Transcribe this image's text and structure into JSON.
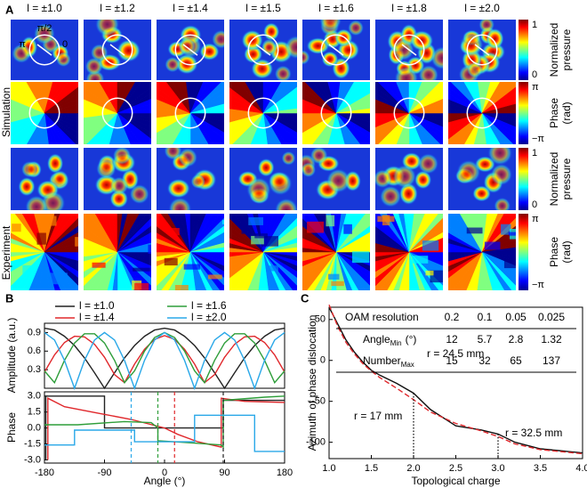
{
  "panel_labels": [
    "A",
    "B",
    "C"
  ],
  "panel_a": {
    "columns": [
      "l = ±1.0",
      "l = ±1.2",
      "l = ±1.4",
      "l = ±1.5",
      "l = ±1.6",
      "l = ±1.8",
      "l = ±2.0"
    ],
    "row_labels": [
      "Simulation",
      "Experiment"
    ],
    "cell_labels": [
      "π/2",
      "π",
      "0"
    ],
    "colorbars": [
      {
        "top": "1",
        "bottom": "0",
        "title": [
          "Normalized",
          "pressure"
        ]
      },
      {
        "top": "π",
        "bottom": "−π",
        "title": [
          "Phase",
          "(rad)"
        ]
      },
      {
        "top": "1",
        "bottom": "0",
        "title": [
          "Normalized",
          "pressure"
        ]
      },
      {
        "top": "π",
        "bottom": "−π",
        "title": [
          "Phase",
          "(rad)"
        ]
      }
    ]
  },
  "chart_data": [
    {
      "type": "line",
      "ylabel": "Amplitude (a.u.)",
      "x": [
        -180,
        -165,
        -150,
        -135,
        -120,
        -105,
        -90,
        -75,
        -60,
        -45,
        -30,
        -15,
        0,
        15,
        30,
        45,
        60,
        75,
        90,
        105,
        120,
        135,
        150,
        165,
        180
      ],
      "xlim": [
        -180,
        180
      ],
      "ylim": [
        0,
        1.05
      ],
      "yticks": [
        0.3,
        0.6,
        0.9
      ],
      "series": [
        {
          "name": "l = ±1.0",
          "color": "#222222",
          "values": [
            0.97,
            0.94,
            0.84,
            0.69,
            0.49,
            0.25,
            0,
            0.25,
            0.49,
            0.69,
            0.84,
            0.94,
            0.97,
            0.94,
            0.84,
            0.69,
            0.49,
            0.25,
            0,
            0.25,
            0.49,
            0.69,
            0.84,
            0.94,
            0.97
          ]
        },
        {
          "name": "l = ±1.4",
          "color": "#e0282c",
          "values": [
            0.26,
            0.54,
            0.74,
            0.84,
            0.83,
            0.71,
            0.5,
            0.22,
            0.09,
            0.39,
            0.63,
            0.79,
            0.85,
            0.79,
            0.63,
            0.39,
            0.09,
            0.22,
            0.5,
            0.71,
            0.83,
            0.84,
            0.74,
            0.54,
            0.26
          ]
        },
        {
          "name": "l = ±1.6",
          "color": "#2e9e3a",
          "values": [
            0.28,
            0.09,
            0.45,
            0.73,
            0.88,
            0.88,
            0.73,
            0.45,
            0.09,
            0.28,
            0.6,
            0.82,
            0.9,
            0.82,
            0.6,
            0.28,
            0.09,
            0.45,
            0.73,
            0.88,
            0.88,
            0.73,
            0.45,
            0.09,
            0.28
          ]
        },
        {
          "name": "l = ±2.0",
          "color": "#2aa8e8",
          "values": [
            0.9,
            0.78,
            0.45,
            0,
            0.45,
            0.78,
            0.9,
            0.78,
            0.45,
            0,
            0.45,
            0.78,
            0.9,
            0.78,
            0.45,
            0,
            0.45,
            0.78,
            0.9,
            0.78,
            0.45,
            0,
            0.45,
            0.78,
            0.9
          ]
        }
      ]
    },
    {
      "type": "line",
      "ylabel": "Phase",
      "xlabel": "Angle (°)",
      "xlim": [
        -180,
        180
      ],
      "xticks": [
        -180,
        -90,
        0,
        90,
        180
      ],
      "ylim": [
        -3.3,
        3.4
      ],
      "yticks": [
        {
          "value": -3,
          "label": "-3.0"
        },
        -1.5,
        {
          "value": 0,
          "label": "0.0"
        },
        1.5,
        {
          "value": 3,
          "label": "3.0"
        }
      ],
      "series": [
        {
          "color": "#222222",
          "x": [
            -178,
            -178,
            -90,
            -90,
            88,
            88,
            180
          ],
          "values": [
            -3.0,
            3.0,
            3.0,
            0,
            0,
            2.6,
            2.6
          ]
        },
        {
          "color": "#e0282c",
          "x": [
            -175,
            -175,
            -150,
            -100,
            -50,
            0,
            20,
            50,
            85,
            85,
            120,
            180
          ],
          "values": [
            -3.0,
            2.8,
            2.0,
            1.4,
            0.8,
            0,
            -0.6,
            -1.3,
            -1.8,
            2.8,
            2.5,
            2.4
          ]
        },
        {
          "color": "#2e9e3a",
          "x": [
            -180,
            -130,
            -60,
            -20,
            -10,
            -10,
            40,
            85,
            88,
            88,
            150,
            180
          ],
          "values": [
            0.3,
            0.3,
            0.6,
            0.5,
            0,
            -1.2,
            -1.4,
            -1.6,
            -1.8,
            2.6,
            2.9,
            3.0
          ]
        },
        {
          "color": "#2aa8e8",
          "x": [
            -180,
            -135,
            -135,
            -45,
            -45,
            45,
            45,
            135,
            135,
            180
          ],
          "values": [
            -1.6,
            -1.6,
            -0.2,
            -0.2,
            -1.3,
            -1.3,
            1.2,
            1.2,
            -2.2,
            -2.2
          ]
        }
      ],
      "markers": [
        {
          "x": -50,
          "color": "#2aa8e8"
        },
        {
          "x": -10,
          "color": "#2e9e3a"
        },
        {
          "x": 15,
          "color": "#e0282c"
        },
        {
          "x": 88,
          "color": "#222222"
        }
      ]
    },
    {
      "type": "line",
      "xlabel": "Topological charge",
      "ylabel": "Azimuth of phase dislocation",
      "x": [
        1.0,
        1.1,
        1.2,
        1.3,
        1.4,
        1.5,
        1.6,
        1.8,
        2.0,
        2.2,
        2.5,
        2.8,
        3.0,
        3.2,
        3.5,
        4.0
      ],
      "xlim": [
        1,
        4
      ],
      "xticks": [
        {
          "value": 1,
          "label": "1.0"
        },
        1.5,
        {
          "value": 2,
          "label": "2.0"
        },
        2.5,
        {
          "value": 3,
          "label": "3.0"
        },
        3.5,
        {
          "value": 4,
          "label": "4.0"
        }
      ],
      "ylim": [
        -120,
        65
      ],
      "yticks": [
        -100,
        -50,
        0,
        50
      ],
      "series": [
        {
          "color": "#111111",
          "linestyle": "solid",
          "values": [
            65,
            45,
            25,
            10,
            -2,
            -12,
            -18,
            -28,
            -40,
            -60,
            -80,
            -85,
            -90,
            -100,
            -108,
            -113
          ]
        },
        {
          "color": "#e0282c",
          "linestyle": "dashed",
          "values": [
            68,
            42,
            22,
            8,
            -4,
            -13,
            -21,
            -34,
            -48,
            -63,
            -77,
            -86,
            -93,
            -102,
            -109,
            -114
          ]
        }
      ],
      "markers": [
        {
          "x": 2
        },
        {
          "x": 3
        }
      ],
      "annotations": [
        "r = 17 mm",
        "r = 24.5 mm",
        "r = 32.5 mm"
      ],
      "table": {
        "rows": [
          {
            "label": {
              "text": "OAM resolution"
            },
            "values": [
              0.2,
              0.1,
              0.05,
              0.025
            ]
          },
          {
            "label": {
              "text": "Angle",
              "sub": "Min",
              "suffix": "(°)"
            },
            "values": [
              12,
              5.7,
              2.8,
              1.32
            ]
          },
          {
            "label": {
              "text": "Number",
              "sub": "Max"
            },
            "values": [
              15,
              32,
              65,
              137
            ]
          }
        ]
      }
    }
  ]
}
